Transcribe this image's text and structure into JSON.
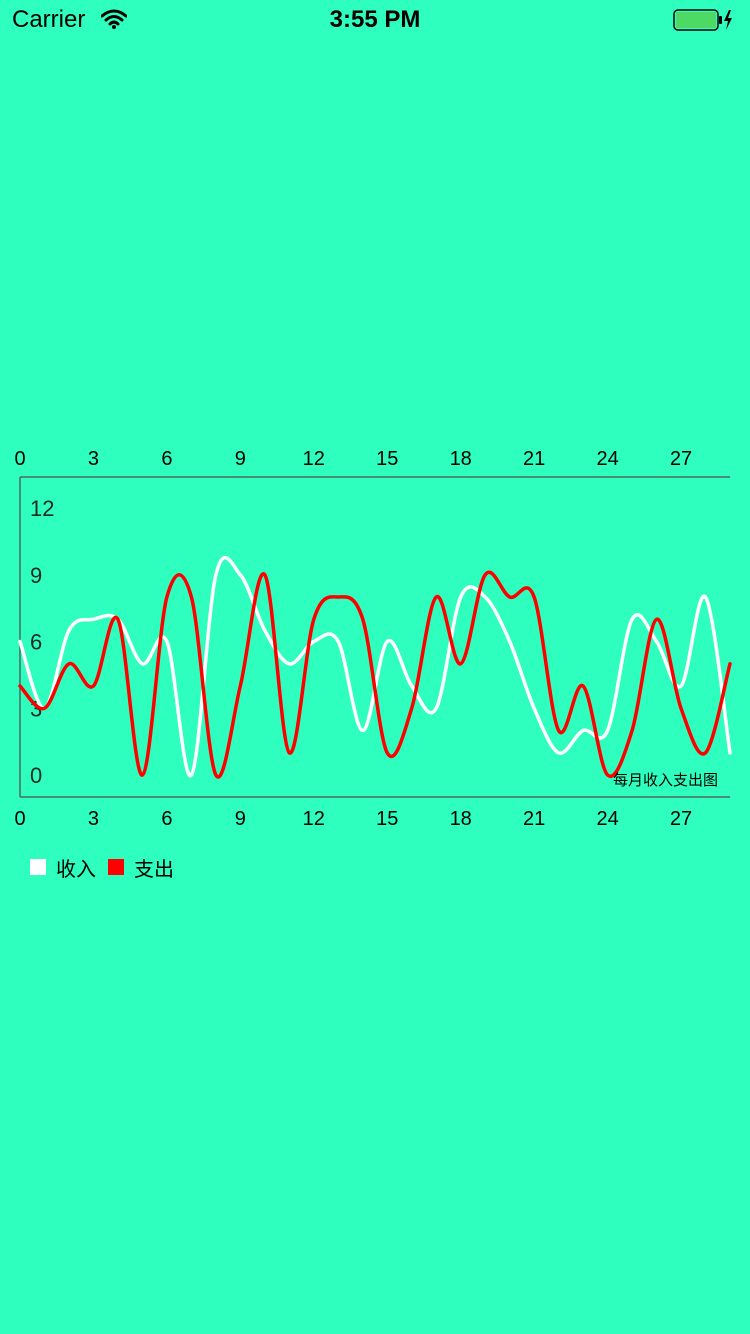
{
  "status_bar": {
    "carrier": "Carrier",
    "time": "3:55 PM",
    "battery_color": "#4cd964"
  },
  "legend": {
    "items": [
      {
        "label": "收入",
        "color": "#ffffff"
      },
      {
        "label": "支出",
        "color": "#ff0000"
      }
    ]
  },
  "chart_data": {
    "type": "line",
    "title": "",
    "annotation": "每月收入支出图",
    "xlabel": "",
    "ylabel": "",
    "xlim": [
      0,
      29
    ],
    "ylim": [
      0,
      12
    ],
    "x_ticks": [
      0,
      3,
      6,
      9,
      12,
      15,
      18,
      21,
      24,
      27
    ],
    "y_ticks": [
      0,
      3,
      6,
      9,
      12
    ],
    "x_tick_positions": [
      "top",
      "bottom"
    ],
    "grid": false,
    "legend_placement": "bottom-left",
    "smooth": true,
    "series": [
      {
        "name": "收入",
        "color": "#ffffff",
        "x": [
          0,
          1,
          2,
          3,
          4,
          5,
          6,
          7,
          8,
          9,
          10,
          11,
          12,
          13,
          14,
          15,
          16,
          17,
          18,
          19,
          20,
          21,
          22,
          23,
          24,
          25,
          26,
          27,
          28,
          29
        ],
        "y": [
          6,
          3,
          6.5,
          7,
          7,
          5,
          6,
          0,
          9,
          9,
          6.5,
          5,
          6,
          6,
          2,
          6,
          4,
          3,
          8,
          8,
          6,
          3,
          1,
          2,
          2,
          7,
          6,
          4,
          8,
          1
        ]
      },
      {
        "name": "支出",
        "color": "#ff0000",
        "x": [
          0,
          1,
          2,
          3,
          4,
          5,
          6,
          7,
          8,
          9,
          10,
          11,
          12,
          13,
          14,
          15,
          16,
          17,
          18,
          19,
          20,
          21,
          22,
          23,
          24,
          25,
          26,
          27,
          28,
          29
        ],
        "y": [
          4,
          3,
          5,
          4,
          7,
          0,
          8,
          8,
          0,
          4,
          9,
          1,
          7,
          8,
          7,
          1,
          3,
          8,
          5,
          9,
          8,
          8,
          2,
          4,
          0,
          2,
          7,
          3,
          1,
          5
        ]
      }
    ]
  }
}
